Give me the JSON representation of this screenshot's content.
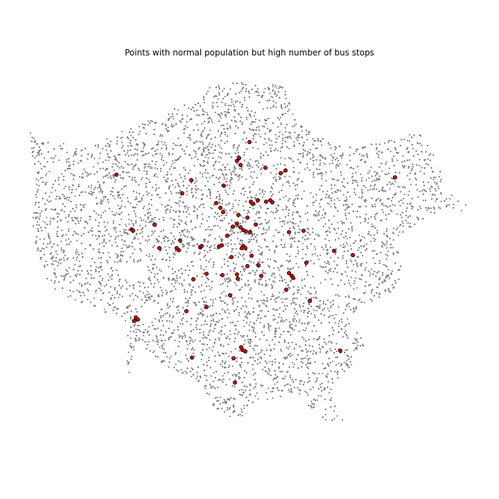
{
  "title": "Points with normal population but high number of bus stops",
  "colors": {
    "background_points": "#7a7a7a",
    "highlight_fill": "#e00000",
    "highlight_edge": "#000000"
  },
  "axes_visible": false,
  "chart_data": {
    "type": "scatter",
    "title": "Points with normal population but high number of bus stops",
    "xlabel": "",
    "ylabel": "",
    "grid": false,
    "legend": "none",
    "series": [
      {
        "role": "all-points",
        "marker": "small grey dots",
        "count_estimate": 9000
      },
      {
        "role": "highlighted-points",
        "marker": "red filled circle with black edge",
        "points": [
          [
            360,
            205
          ],
          [
            345,
            228
          ],
          [
            342,
            232
          ],
          [
            347,
            238
          ],
          [
            383,
            242
          ],
          [
            405,
            250
          ],
          [
            412,
            246
          ],
          [
            168,
            252
          ],
          [
            276,
            260
          ],
          [
            323,
            268
          ],
          [
            263,
            279
          ],
          [
            570,
            256
          ],
          [
            312,
            293
          ],
          [
            318,
            300
          ],
          [
            322,
            306
          ],
          [
            362,
            291
          ],
          [
            365,
            294
          ],
          [
            372,
            289
          ],
          [
            384,
            291
          ],
          [
            390,
            289
          ],
          [
            393,
            292
          ],
          [
            344,
            310
          ],
          [
            336,
            327
          ],
          [
            342,
            323
          ],
          [
            347,
            328
          ],
          [
            351,
            332
          ],
          [
            355,
            334
          ],
          [
            361,
            335
          ],
          [
            369,
            324
          ],
          [
            357,
            314
          ],
          [
            190,
            331
          ],
          [
            192,
            333
          ],
          [
            223,
            324
          ],
          [
            417,
            335
          ],
          [
            438,
            333
          ],
          [
            328,
            340
          ],
          [
            260,
            347
          ],
          [
            230,
            358
          ],
          [
            255,
            358
          ],
          [
            258,
            361
          ],
          [
            289,
            357
          ],
          [
            291,
            355
          ],
          [
            316,
            356
          ],
          [
            320,
            354
          ],
          [
            351,
            355
          ],
          [
            354,
            358
          ],
          [
            349,
            358
          ],
          [
            482,
            362
          ],
          [
            509,
            368
          ],
          [
            334,
            371
          ],
          [
            363,
            369
          ],
          [
            357,
            384
          ],
          [
            373,
            383
          ],
          [
            442,
            379
          ],
          [
            279,
            403
          ],
          [
            298,
            395
          ],
          [
            321,
            397
          ],
          [
            342,
            396
          ],
          [
            343,
            402
          ],
          [
            377,
            398
          ],
          [
            417,
            394
          ],
          [
            421,
            398
          ],
          [
            423,
            401
          ],
          [
            413,
            418
          ],
          [
            332,
            426
          ],
          [
            447,
            434
          ],
          [
            298,
            443
          ],
          [
            269,
            449
          ],
          [
            196,
            458
          ],
          [
            199,
            461
          ],
          [
            194,
            463
          ],
          [
            348,
            501
          ],
          [
            350,
            505
          ],
          [
            354,
            507
          ],
          [
            337,
            517
          ],
          [
            277,
            516
          ],
          [
            491,
            506
          ],
          [
            339,
            552
          ]
        ]
      }
    ]
  }
}
